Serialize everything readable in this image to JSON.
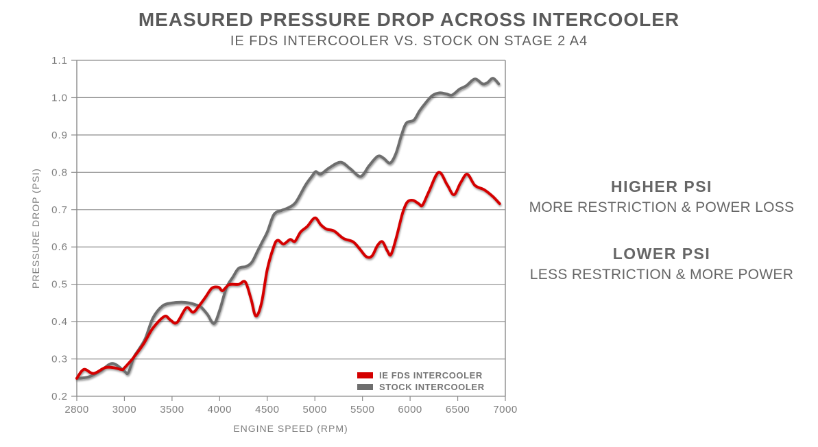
{
  "title": "MEASURED PRESSURE DROP ACROSS INTERCOOLER",
  "subtitle": "IE FDS INTERCOOLER VS. STOCK ON STAGE 2 A4",
  "annotations": {
    "higher_heading": "HIGHER PSI",
    "higher_sub": "MORE RESTRICTION & POWER LOSS",
    "lower_heading": "LOWER PSI",
    "lower_sub": "LESS RESTRICTION & MORE POWER"
  },
  "colors": {
    "ie_fds_red": "#d40000",
    "stock_gray": "#6e6e6e",
    "gridline": "#8a8a8a",
    "axis_text": "#7d7d7d",
    "title_text": "#5a5a5a",
    "annotation_text": "#666666",
    "legend_text": "#757575",
    "background": "#ffffff"
  },
  "chart_data": {
    "type": "line",
    "title": "MEASURED PRESSURE DROP ACROSS INTERCOOLER",
    "subtitle": "IE FDS INTERCOOLER VS. STOCK ON STAGE 2 A4",
    "xlabel": "ENGINE SPEED (RPM)",
    "ylabel": "PRESSURE DROP (PSI)",
    "x_ticks": [
      2800,
      3000,
      3500,
      4000,
      4500,
      5000,
      5500,
      6000,
      6500,
      7000
    ],
    "x_tick_labels": [
      "2800",
      "3000",
      "3500",
      "4000",
      "4500",
      "5000",
      "5500",
      "6000",
      "6500",
      "7000"
    ],
    "x_axis_note": "category axis: the ten tick labels are evenly spaced even though 2800-3000 is only 200 RPM",
    "y_ticks": [
      0.2,
      0.3,
      0.4,
      0.5,
      0.6,
      0.7,
      0.8,
      0.9,
      1.0,
      1.1
    ],
    "y_tick_labels": [
      "0.2",
      "0.3",
      "0.4",
      "0.5",
      "0.6",
      "0.7",
      "0.8",
      "0.9",
      "1.0",
      "1.1"
    ],
    "ylim": [
      0.2,
      1.1
    ],
    "xlim_rpm": [
      2800,
      7000
    ],
    "grid": "horizontal-only",
    "legend_position": "inside-bottom-right",
    "series": [
      {
        "name": "STOCK INTERCOOLER",
        "color": "#6e6e6e",
        "points": [
          [
            2800,
            0.248
          ],
          [
            2850,
            0.252
          ],
          [
            2900,
            0.268
          ],
          [
            2950,
            0.288
          ],
          [
            3000,
            0.267
          ],
          [
            3040,
            0.263
          ],
          [
            3100,
            0.305
          ],
          [
            3150,
            0.325
          ],
          [
            3220,
            0.355
          ],
          [
            3300,
            0.41
          ],
          [
            3400,
            0.442
          ],
          [
            3500,
            0.45
          ],
          [
            3600,
            0.452
          ],
          [
            3680,
            0.45
          ],
          [
            3750,
            0.445
          ],
          [
            3800,
            0.44
          ],
          [
            3870,
            0.42
          ],
          [
            3940,
            0.395
          ],
          [
            4000,
            0.43
          ],
          [
            4070,
            0.49
          ],
          [
            4140,
            0.52
          ],
          [
            4200,
            0.543
          ],
          [
            4280,
            0.548
          ],
          [
            4340,
            0.56
          ],
          [
            4400,
            0.59
          ],
          [
            4450,
            0.615
          ],
          [
            4500,
            0.64
          ],
          [
            4570,
            0.687
          ],
          [
            4650,
            0.698
          ],
          [
            4720,
            0.705
          ],
          [
            4800,
            0.72
          ],
          [
            4900,
            0.765
          ],
          [
            4970,
            0.79
          ],
          [
            5010,
            0.802
          ],
          [
            5060,
            0.795
          ],
          [
            5150,
            0.812
          ],
          [
            5270,
            0.827
          ],
          [
            5370,
            0.81
          ],
          [
            5480,
            0.789
          ],
          [
            5570,
            0.818
          ],
          [
            5660,
            0.843
          ],
          [
            5720,
            0.838
          ],
          [
            5790,
            0.825
          ],
          [
            5850,
            0.85
          ],
          [
            5910,
            0.9
          ],
          [
            5960,
            0.932
          ],
          [
            6040,
            0.94
          ],
          [
            6100,
            0.965
          ],
          [
            6160,
            0.985
          ],
          [
            6230,
            1.005
          ],
          [
            6310,
            1.013
          ],
          [
            6380,
            1.01
          ],
          [
            6440,
            1.007
          ],
          [
            6520,
            1.023
          ],
          [
            6590,
            1.032
          ],
          [
            6680,
            1.05
          ],
          [
            6760,
            1.037
          ],
          [
            6810,
            1.04
          ],
          [
            6870,
            1.052
          ],
          [
            6930,
            1.037
          ]
        ]
      },
      {
        "name": "IE FDS INTERCOOLER",
        "color": "#d40000",
        "points": [
          [
            2800,
            0.248
          ],
          [
            2830,
            0.272
          ],
          [
            2870,
            0.261
          ],
          [
            2920,
            0.277
          ],
          [
            2960,
            0.276
          ],
          [
            2990,
            0.271
          ],
          [
            3000,
            0.276
          ],
          [
            3050,
            0.29
          ],
          [
            3100,
            0.305
          ],
          [
            3200,
            0.34
          ],
          [
            3300,
            0.383
          ],
          [
            3420,
            0.414
          ],
          [
            3480,
            0.405
          ],
          [
            3550,
            0.397
          ],
          [
            3650,
            0.437
          ],
          [
            3720,
            0.425
          ],
          [
            3780,
            0.441
          ],
          [
            3850,
            0.465
          ],
          [
            3920,
            0.49
          ],
          [
            3990,
            0.492
          ],
          [
            4030,
            0.483
          ],
          [
            4100,
            0.499
          ],
          [
            4200,
            0.5
          ],
          [
            4270,
            0.506
          ],
          [
            4330,
            0.46
          ],
          [
            4380,
            0.415
          ],
          [
            4440,
            0.45
          ],
          [
            4500,
            0.54
          ],
          [
            4570,
            0.602
          ],
          [
            4610,
            0.618
          ],
          [
            4670,
            0.608
          ],
          [
            4740,
            0.62
          ],
          [
            4790,
            0.615
          ],
          [
            4850,
            0.64
          ],
          [
            4920,
            0.655
          ],
          [
            5000,
            0.678
          ],
          [
            5060,
            0.66
          ],
          [
            5120,
            0.648
          ],
          [
            5200,
            0.643
          ],
          [
            5300,
            0.623
          ],
          [
            5400,
            0.614
          ],
          [
            5470,
            0.595
          ],
          [
            5540,
            0.574
          ],
          [
            5600,
            0.576
          ],
          [
            5660,
            0.605
          ],
          [
            5710,
            0.614
          ],
          [
            5760,
            0.59
          ],
          [
            5800,
            0.58
          ],
          [
            5860,
            0.63
          ],
          [
            5920,
            0.69
          ],
          [
            5970,
            0.72
          ],
          [
            6030,
            0.725
          ],
          [
            6090,
            0.716
          ],
          [
            6130,
            0.712
          ],
          [
            6200,
            0.75
          ],
          [
            6300,
            0.8
          ],
          [
            6390,
            0.766
          ],
          [
            6460,
            0.74
          ],
          [
            6530,
            0.772
          ],
          [
            6600,
            0.795
          ],
          [
            6680,
            0.765
          ],
          [
            6780,
            0.753
          ],
          [
            6870,
            0.735
          ],
          [
            6940,
            0.716
          ]
        ]
      }
    ]
  }
}
